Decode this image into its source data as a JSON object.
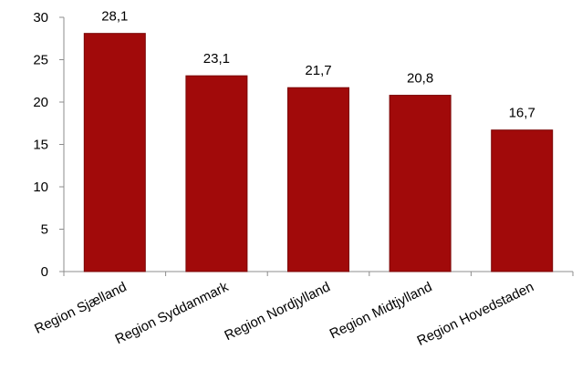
{
  "chart_data": {
    "type": "bar",
    "title": "",
    "xlabel": "",
    "ylabel": "",
    "categories": [
      "Region Sjælland",
      "Region Syddanmark",
      "Region Nordjylland",
      "Region Midtjylland",
      "Region Hovedstaden"
    ],
    "values": [
      28.1,
      23.1,
      21.7,
      20.8,
      16.7
    ],
    "data_labels": [
      "28,1",
      "23,1",
      "21,7",
      "20,8",
      "16,7"
    ],
    "ylim": [
      0,
      30
    ],
    "yticks": [
      0,
      5,
      10,
      15,
      20,
      25,
      30
    ],
    "ytick_labels": [
      "0",
      "5",
      "10",
      "15",
      "20",
      "25",
      "30"
    ],
    "grid": false,
    "legend": "none",
    "bar_color": "#a10a0a",
    "bar_edge_color": "#7a0606"
  }
}
